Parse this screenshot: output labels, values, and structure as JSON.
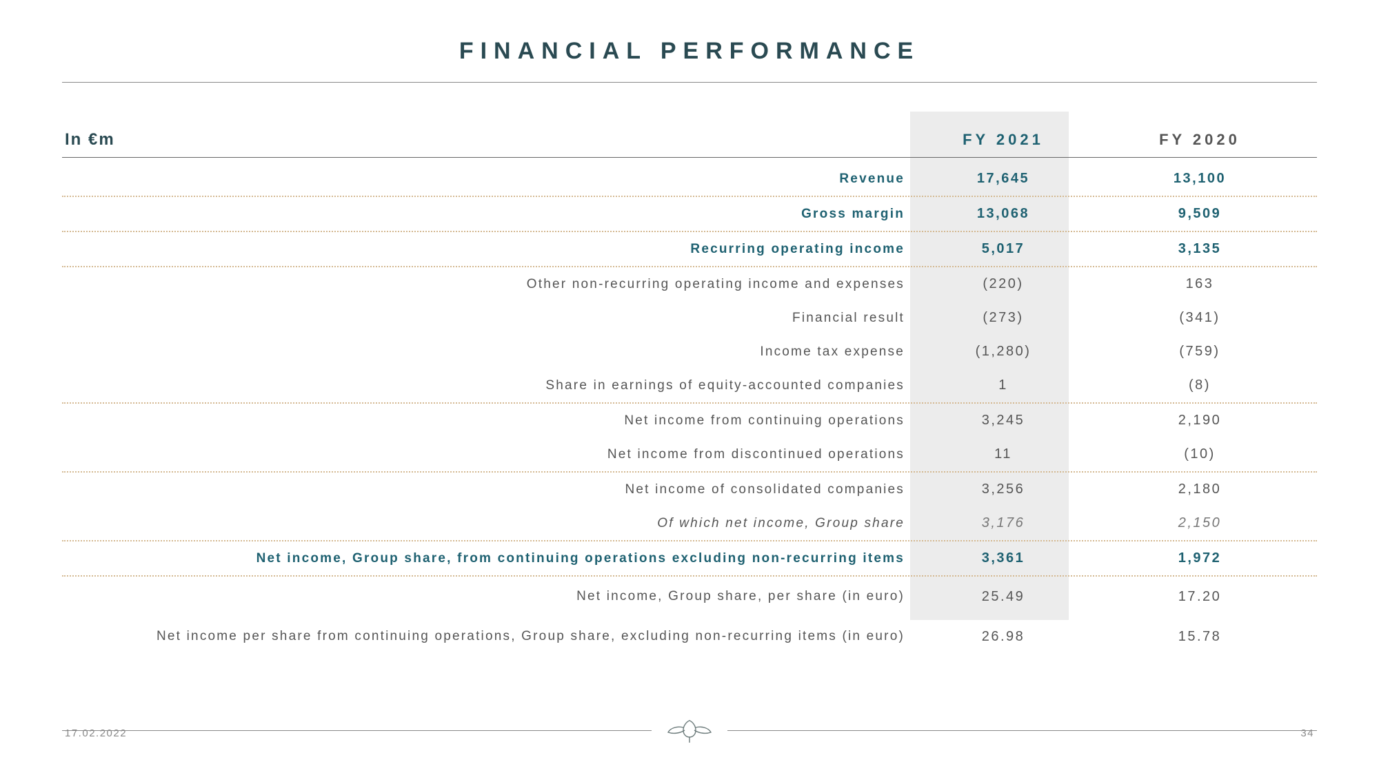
{
  "title": "FINANCIAL PERFORMANCE",
  "header": {
    "unit": "In €m",
    "col1": "FY 2021",
    "col2": "FY 2020"
  },
  "rows": [
    {
      "label": "Revenue",
      "v1": "17,645",
      "v2": "13,100",
      "style": "teal",
      "sep": "dots"
    },
    {
      "label": "Gross margin",
      "v1": "13,068",
      "v2": "9,509",
      "style": "teal",
      "sep": "dots"
    },
    {
      "label": "Recurring operating income",
      "v1": "5,017",
      "v2": "3,135",
      "style": "teal",
      "sep": "dots"
    },
    {
      "label": "Other non-recurring operating income and expenses",
      "v1": "(220)",
      "v2": "163",
      "style": "normal",
      "sep": "none"
    },
    {
      "label": "Financial result",
      "v1": "(273)",
      "v2": "(341)",
      "style": "normal",
      "sep": "none"
    },
    {
      "label": "Income tax expense",
      "v1": "(1,280)",
      "v2": "(759)",
      "style": "normal",
      "sep": "none"
    },
    {
      "label": "Share in earnings of equity-accounted companies",
      "v1": "1",
      "v2": "(8)",
      "style": "normal",
      "sep": "dots"
    },
    {
      "label": "Net income from continuing operations",
      "v1": "3,245",
      "v2": "2,190",
      "style": "normal",
      "sep": "none"
    },
    {
      "label": "Net income from discontinued operations",
      "v1": "11",
      "v2": "(10)",
      "style": "normal",
      "sep": "dots"
    },
    {
      "label": "Net income of consolidated companies",
      "v1": "3,256",
      "v2": "2,180",
      "style": "normal",
      "sep": "none"
    },
    {
      "label": "Of which net income, Group share",
      "v1": "3,176",
      "v2": "2,150",
      "style": "italic",
      "sep": "dots"
    },
    {
      "label": "Net income, Group share, from continuing operations excluding non-recurring items",
      "v1": "3,361",
      "v2": "1,972",
      "style": "teal",
      "sep": "dots"
    },
    {
      "label": "Net income, Group share, per share (in euro)",
      "v1": "25.49",
      "v2": "17.20",
      "style": "normal",
      "sep": "none",
      "tall": true
    },
    {
      "label": "Net income per share from continuing operations, Group share, excluding non-recurring items (in euro)",
      "v1": "26.98",
      "v2": "15.78",
      "style": "normal",
      "sep": "none",
      "tall": true
    }
  ],
  "footer": {
    "date": "17.02.2022",
    "page": "34"
  },
  "colors": {
    "teal": "#1e6171",
    "text": "#555555",
    "dot": "#d4b992",
    "highlight": "#ececec"
  }
}
